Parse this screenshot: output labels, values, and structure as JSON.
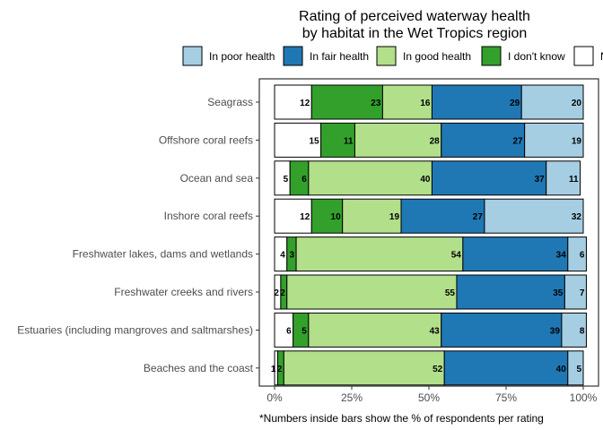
{
  "chart_data": {
    "type": "bar",
    "orientation": "horizontal",
    "stacked": true,
    "percent": true,
    "title_lines": [
      "Rating of perceived waterway health",
      "by habitat in the Wet Tropics region"
    ],
    "caption": "*Numbers inside bars show the % of respondents per rating",
    "xlim": [
      0,
      100
    ],
    "x_ticks": [
      0,
      25,
      50,
      75,
      100
    ],
    "x_tick_labels": [
      "0%",
      "25%",
      "50%",
      "75%",
      "100%"
    ],
    "legend_position": "top",
    "categories": [
      "Seagrass",
      "Offshore coral reefs",
      "Ocean and sea",
      "Inshore coral reefs",
      "Freshwater lakes, dams and wetlands",
      "Freshwater creeks and rivers",
      "Estuaries (including mangroves and saltmarshes)",
      "Beaches and the coast"
    ],
    "series": [
      {
        "name": "N",
        "color": "#ffffff",
        "values": [
          12,
          15,
          5,
          12,
          4,
          2,
          6,
          1
        ]
      },
      {
        "name": "I don't know",
        "color": "#33a02c",
        "values": [
          23,
          11,
          6,
          10,
          3,
          2,
          5,
          2
        ]
      },
      {
        "name": "In good health",
        "color": "#b2df8a",
        "values": [
          16,
          28,
          40,
          19,
          54,
          55,
          43,
          52
        ]
      },
      {
        "name": "In fair health",
        "color": "#1f78b4",
        "values": [
          29,
          27,
          37,
          27,
          34,
          35,
          39,
          40
        ]
      },
      {
        "name": "In poor health",
        "color": "#a6cee3",
        "values": [
          20,
          19,
          11,
          32,
          6,
          7,
          8,
          5
        ]
      }
    ],
    "legend_entries": [
      "In poor health",
      "In fair health",
      "In good health",
      "I don't know",
      "N"
    ]
  }
}
